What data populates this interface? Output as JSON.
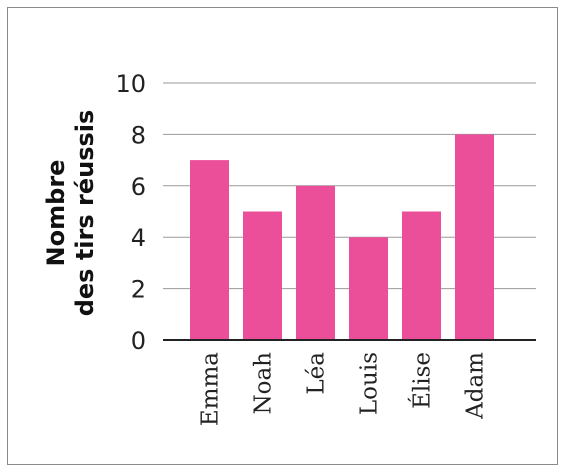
{
  "chart_data": {
    "type": "bar",
    "categories": [
      "Emma",
      "Noah",
      "Léa",
      "Louis",
      "Élise",
      "Adam"
    ],
    "values": [
      7,
      5,
      6,
      4,
      5,
      8
    ],
    "title": "",
    "xlabel": "",
    "ylabel_lines": [
      "Nombre",
      "des tirs réussis"
    ],
    "ylim": [
      0,
      10
    ],
    "yticks": [
      "0",
      "2",
      "4",
      "6",
      "8",
      "10"
    ],
    "grid": true,
    "bar_color": "#ec4f9a",
    "grid_color": "#9a9a9a",
    "axis_color": "#222222"
  }
}
